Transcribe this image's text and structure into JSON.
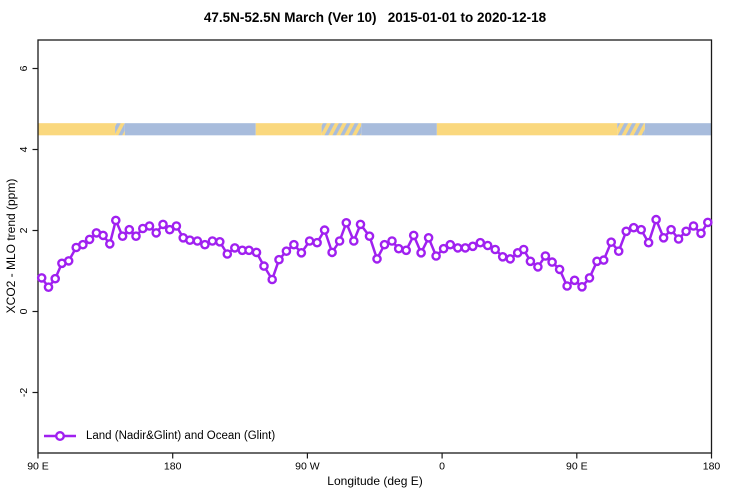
{
  "title": "47.5N-52.5N March (Ver 10)   2015-01-01 to 2020-12-18",
  "chart_data": {
    "type": "line",
    "title": "47.5N-52.5N March (Ver 10)   2015-01-01 to 2020-12-18",
    "xlabel": "Longitude (deg E)",
    "ylabel": "XCO2 - MLO trend (ppm)",
    "xlim": [
      90,
      540
    ],
    "ylim": [
      -3.5,
      6.7
    ],
    "grid": false,
    "legend_position": "bottom-left-inside",
    "x_ticks": [
      {
        "value": 90,
        "label": "90 E"
      },
      {
        "value": 180,
        "label": "180"
      },
      {
        "value": 270,
        "label": "90 W"
      },
      {
        "value": 360,
        "label": "0"
      },
      {
        "value": 450,
        "label": "90 E"
      },
      {
        "value": 540,
        "label": "180"
      }
    ],
    "y_ticks": [
      {
        "value": -2,
        "label": "-2"
      },
      {
        "value": 0,
        "label": "0"
      },
      {
        "value": 2,
        "label": "2"
      },
      {
        "value": 4,
        "label": "4"
      },
      {
        "value": 6,
        "label": "6"
      }
    ],
    "colors": {
      "series": "#A020F0",
      "land_band": "#FAD87E",
      "ocean_band": "#A8BCDC",
      "frame": "#1a1a1a"
    },
    "surface_band": {
      "description": "land/ocean surface-type strip drawn across the plot",
      "y_range": [
        4.35,
        4.65
      ],
      "segments": [
        {
          "from": 90,
          "to": 141.5,
          "surface": "land"
        },
        {
          "from": 141.5,
          "to": 148,
          "surface": "mixed"
        },
        {
          "from": 148,
          "to": 235.5,
          "surface": "ocean"
        },
        {
          "from": 235.5,
          "to": 279.5,
          "surface": "land"
        },
        {
          "from": 279.5,
          "to": 306,
          "surface": "mixed"
        },
        {
          "from": 306,
          "to": 356.5,
          "surface": "ocean"
        },
        {
          "from": 356.5,
          "to": 477,
          "surface": "land"
        },
        {
          "from": 477,
          "to": 495.5,
          "surface": "mixed"
        },
        {
          "from": 495.5,
          "to": 540,
          "surface": "ocean"
        }
      ]
    },
    "legend": [
      {
        "label": "Land (Nadir&Glint) and Ocean (Glint)",
        "color": "#A020F0",
        "marker": "open-circle"
      }
    ],
    "series": [
      {
        "name": "Land (Nadir&Glint) and Ocean (Glint)",
        "marker": "open-circle",
        "points": [
          [
            92.5,
            0.83
          ],
          [
            97,
            0.6
          ],
          [
            101.5,
            0.81
          ],
          [
            106,
            1.19
          ],
          [
            110.5,
            1.25
          ],
          [
            115.5,
            1.58
          ],
          [
            120,
            1.65
          ],
          [
            124.5,
            1.78
          ],
          [
            129,
            1.94
          ],
          [
            133.5,
            1.88
          ],
          [
            138,
            1.67
          ],
          [
            142,
            2.25
          ],
          [
            146.5,
            1.86
          ],
          [
            151,
            2.02
          ],
          [
            155.5,
            1.86
          ],
          [
            160,
            2.05
          ],
          [
            164.5,
            2.11
          ],
          [
            169,
            1.94
          ],
          [
            173.5,
            2.15
          ],
          [
            178,
            2.02
          ],
          [
            182.5,
            2.11
          ],
          [
            187,
            1.82
          ],
          [
            191.5,
            1.76
          ],
          [
            196.5,
            1.74
          ],
          [
            201.5,
            1.65
          ],
          [
            206.5,
            1.74
          ],
          [
            211.5,
            1.72
          ],
          [
            216.5,
            1.42
          ],
          [
            221.5,
            1.57
          ],
          [
            226.5,
            1.51
          ],
          [
            231,
            1.51
          ],
          [
            236,
            1.46
          ],
          [
            241,
            1.12
          ],
          [
            246.5,
            0.79
          ],
          [
            251,
            1.28
          ],
          [
            256,
            1.49
          ],
          [
            261,
            1.65
          ],
          [
            266,
            1.45
          ],
          [
            271.5,
            1.74
          ],
          [
            276.5,
            1.7
          ],
          [
            281.5,
            2.01
          ],
          [
            286.5,
            1.46
          ],
          [
            291.5,
            1.74
          ],
          [
            296,
            2.19
          ],
          [
            301,
            1.74
          ],
          [
            305.5,
            2.15
          ],
          [
            311.5,
            1.86
          ],
          [
            316.5,
            1.3
          ],
          [
            321.5,
            1.65
          ],
          [
            326.5,
            1.74
          ],
          [
            331,
            1.55
          ],
          [
            336,
            1.51
          ],
          [
            341,
            1.88
          ],
          [
            346,
            1.45
          ],
          [
            351,
            1.82
          ],
          [
            356,
            1.37
          ],
          [
            361,
            1.55
          ],
          [
            365.5,
            1.65
          ],
          [
            370.5,
            1.57
          ],
          [
            375.5,
            1.57
          ],
          [
            380.5,
            1.61
          ],
          [
            385.5,
            1.7
          ],
          [
            390.5,
            1.63
          ],
          [
            395.5,
            1.53
          ],
          [
            400.5,
            1.35
          ],
          [
            405.5,
            1.3
          ],
          [
            410.5,
            1.45
          ],
          [
            414.5,
            1.53
          ],
          [
            419,
            1.24
          ],
          [
            424,
            1.1
          ],
          [
            429,
            1.37
          ],
          [
            433.5,
            1.22
          ],
          [
            438.5,
            1.04
          ],
          [
            443.5,
            0.63
          ],
          [
            448.5,
            0.77
          ],
          [
            453.5,
            0.61
          ],
          [
            458.5,
            0.83
          ],
          [
            463.5,
            1.24
          ],
          [
            468,
            1.27
          ],
          [
            473,
            1.71
          ],
          [
            478,
            1.49
          ],
          [
            483,
            1.98
          ],
          [
            488,
            2.07
          ],
          [
            493,
            2.02
          ],
          [
            498,
            1.7
          ],
          [
            503,
            2.27
          ],
          [
            508,
            1.82
          ],
          [
            513,
            2.02
          ],
          [
            518,
            1.79
          ],
          [
            523,
            1.98
          ],
          [
            528,
            2.11
          ],
          [
            533,
            1.93
          ],
          [
            537.5,
            2.2
          ]
        ]
      }
    ]
  }
}
